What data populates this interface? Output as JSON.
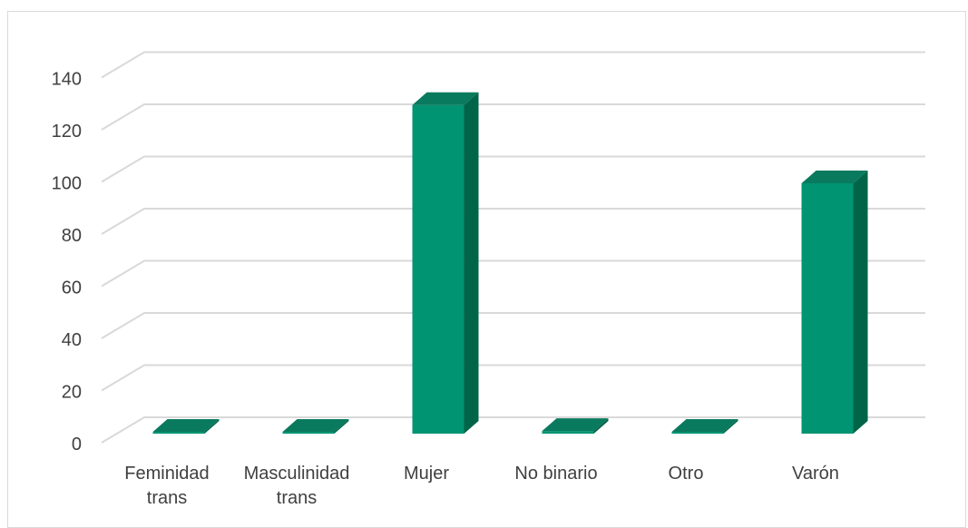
{
  "chart_data": {
    "type": "bar",
    "style": "3d-column",
    "title": "",
    "xlabel": "",
    "ylabel": "",
    "categories": [
      [
        "Feminidad",
        "trans"
      ],
      [
        "Masculinidad",
        "trans"
      ],
      [
        "Mujer"
      ],
      [
        "No binario"
      ],
      [
        "Otro"
      ],
      [
        "Varón"
      ]
    ],
    "values": [
      0,
      0,
      126,
      1,
      0,
      96
    ],
    "ylim": [
      0,
      140
    ],
    "yticks": [
      "0",
      "20",
      "40",
      "60",
      "80",
      "100",
      "120",
      "140"
    ],
    "grid": true,
    "legend": "none",
    "colors": {
      "front": "#009473",
      "top": "#0a7a5e",
      "side": "#006548",
      "grid": "#d9d9d9",
      "text": "#404040"
    }
  }
}
